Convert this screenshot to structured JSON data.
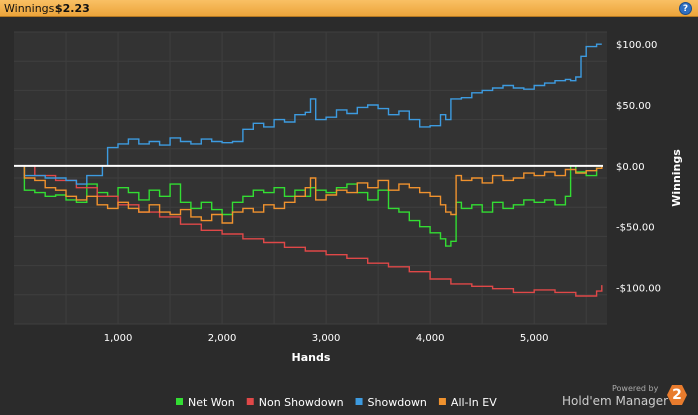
{
  "header": {
    "label": "Winnings:",
    "value": "$2.23",
    "help_icon": "?"
  },
  "logo": {
    "powered": "Powered by",
    "name": "Hold'em Manager",
    "badge": "2"
  },
  "colors": {
    "net_won": "#33dd33",
    "non_showdown": "#e04848",
    "showdown": "#3d9be0",
    "all_in_ev": "#f0922e",
    "zero_line": "#ffffff",
    "grid": "#3f3f3f",
    "text": "#ffffff"
  },
  "chart_data": {
    "type": "line",
    "title": "",
    "xlabel": "Hands",
    "ylabel": "Winnings",
    "xlim": [
      0,
      5700
    ],
    "ylim": [
      -130,
      110
    ],
    "x_ticks": [
      1000,
      2000,
      3000,
      4000,
      5000
    ],
    "x_tick_labels": [
      "1,000",
      "2,000",
      "3,000",
      "4,000",
      "5,000"
    ],
    "y_ticks": [
      100,
      50,
      0,
      -50,
      -100
    ],
    "y_tick_labels": [
      "$100.00",
      "$50.00",
      "$0.00",
      "-$50.00",
      "-$100.00"
    ],
    "grid": true,
    "legend_position": "bottom",
    "series": [
      {
        "name": "Net Won",
        "color": "#33dd33",
        "x": [
          0,
          100,
          200,
          300,
          400,
          500,
          600,
          700,
          800,
          900,
          1000,
          1100,
          1200,
          1300,
          1400,
          1500,
          1600,
          1700,
          1800,
          1900,
          2000,
          2100,
          2200,
          2300,
          2400,
          2500,
          2600,
          2700,
          2800,
          2850,
          2900,
          3000,
          3100,
          3200,
          3300,
          3400,
          3500,
          3600,
          3700,
          3800,
          3900,
          4000,
          4100,
          4150,
          4200,
          4250,
          4300,
          4400,
          4500,
          4600,
          4700,
          4800,
          4900,
          5000,
          5100,
          5200,
          5300,
          5350,
          5400,
          5500,
          5600,
          5650
        ],
        "y": [
          0,
          -20,
          -22,
          -25,
          -24,
          -28,
          -30,
          -15,
          -22,
          -25,
          -18,
          -22,
          -28,
          -20,
          -25,
          -15,
          -30,
          -35,
          -30,
          -36,
          -40,
          -30,
          -25,
          -20,
          -22,
          -18,
          -25,
          -20,
          -25,
          -18,
          -20,
          -22,
          -18,
          -15,
          -22,
          -28,
          -20,
          -35,
          -38,
          -45,
          -50,
          -55,
          -60,
          -66,
          -62,
          -30,
          -35,
          -32,
          -38,
          -30,
          -35,
          -32,
          -28,
          -30,
          -28,
          -32,
          -25,
          0,
          -5,
          -8,
          -2,
          0
        ]
      },
      {
        "name": "Non Showdown",
        "color": "#e04848",
        "x": [
          0,
          200,
          400,
          600,
          800,
          1000,
          1200,
          1400,
          1600,
          1800,
          2000,
          2200,
          2400,
          2600,
          2800,
          3000,
          3200,
          3400,
          3600,
          3800,
          4000,
          4200,
          4400,
          4600,
          4800,
          5000,
          5200,
          5400,
          5600,
          5650
        ],
        "y": [
          0,
          -8,
          -12,
          -18,
          -25,
          -32,
          -38,
          -42,
          -48,
          -53,
          -56,
          -60,
          -63,
          -67,
          -70,
          -73,
          -76,
          -80,
          -83,
          -87,
          -93,
          -97,
          -99,
          -101,
          -104,
          -102,
          -104,
          -107,
          -103,
          -98
        ]
      },
      {
        "name": "Showdown",
        "color": "#3d9be0",
        "x": [
          0,
          100,
          300,
          500,
          600,
          700,
          850,
          900,
          1000,
          1100,
          1200,
          1300,
          1400,
          1500,
          1600,
          1700,
          1800,
          1900,
          2000,
          2100,
          2200,
          2300,
          2400,
          2500,
          2600,
          2700,
          2800,
          2850,
          2900,
          3000,
          3100,
          3200,
          3300,
          3400,
          3500,
          3600,
          3700,
          3800,
          3900,
          4000,
          4100,
          4150,
          4200,
          4300,
          4400,
          4500,
          4600,
          4700,
          4800,
          4900,
          5000,
          5100,
          5200,
          5300,
          5350,
          5400,
          5450,
          5500,
          5600,
          5650
        ],
        "y": [
          0,
          -8,
          -10,
          -12,
          -15,
          -8,
          0,
          15,
          18,
          22,
          18,
          20,
          17,
          23,
          20,
          18,
          22,
          20,
          19,
          20,
          30,
          35,
          32,
          38,
          36,
          42,
          44,
          55,
          38,
          40,
          46,
          43,
          48,
          50,
          47,
          42,
          45,
          38,
          32,
          33,
          42,
          38,
          55,
          56,
          60,
          62,
          64,
          66,
          64,
          63,
          66,
          68,
          70,
          71,
          70,
          73,
          90,
          98,
          100,
          100
        ]
      },
      {
        "name": "All-In EV",
        "color": "#f0922e",
        "x": [
          0,
          100,
          200,
          300,
          400,
          500,
          600,
          700,
          800,
          900,
          1000,
          1100,
          1200,
          1300,
          1400,
          1500,
          1600,
          1700,
          1800,
          1900,
          2000,
          2100,
          2200,
          2300,
          2400,
          2500,
          2600,
          2700,
          2800,
          2850,
          2900,
          3000,
          3100,
          3200,
          3300,
          3400,
          3500,
          3600,
          3700,
          3800,
          3900,
          4000,
          4100,
          4150,
          4200,
          4250,
          4300,
          4400,
          4500,
          4600,
          4700,
          4800,
          4900,
          5000,
          5100,
          5200,
          5300,
          5400,
          5500,
          5600,
          5650
        ],
        "y": [
          0,
          -10,
          -12,
          -18,
          -20,
          -25,
          -28,
          -25,
          -32,
          -35,
          -30,
          -35,
          -38,
          -32,
          -38,
          -40,
          -36,
          -42,
          -45,
          -40,
          -47,
          -38,
          -35,
          -38,
          -32,
          -35,
          -30,
          -25,
          -18,
          -10,
          -28,
          -24,
          -20,
          -22,
          -14,
          -18,
          -12,
          -20,
          -15,
          -18,
          -22,
          -25,
          -32,
          -38,
          -40,
          -8,
          -12,
          -10,
          -14,
          -8,
          -12,
          -10,
          -6,
          -8,
          -5,
          -8,
          -3,
          -6,
          -4,
          -2,
          0
        ]
      }
    ]
  }
}
